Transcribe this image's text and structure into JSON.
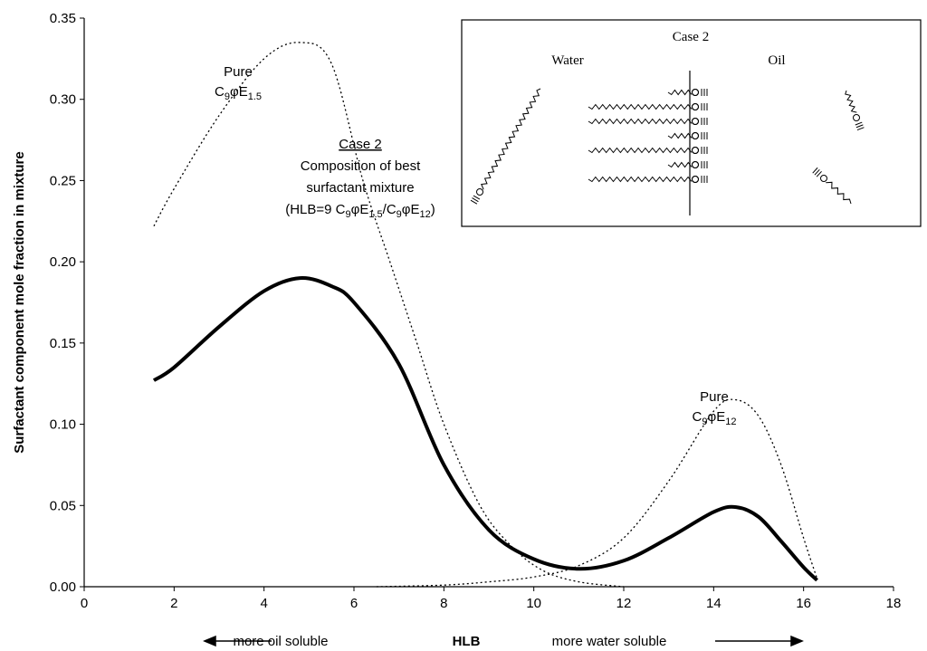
{
  "chart_data": {
    "type": "line",
    "xlabel": "HLB",
    "ylabel": "Surfactant component mole fraction in mixture",
    "xlim": [
      0,
      18
    ],
    "ylim": [
      0,
      0.35
    ],
    "xticks": [
      0,
      2,
      4,
      6,
      8,
      10,
      12,
      14,
      16,
      18
    ],
    "yticks": [
      {
        "value": 0,
        "label": "0.00"
      },
      0.05,
      {
        "value": 0.1,
        "label": "0.10"
      },
      0.15,
      {
        "value": 0.2,
        "label": "0.20"
      },
      0.25,
      {
        "value": 0.3,
        "label": "0.30"
      },
      0.35
    ],
    "series": [
      {
        "color": "#000000",
        "dash": "dotted",
        "width": 1.3,
        "x": [
          1.55,
          2,
          3,
          4,
          4.8,
          5.5,
          6.2,
          6.8,
          7.4,
          8,
          8.8,
          9.5,
          10.2,
          11,
          12
        ],
        "values": [
          0.222,
          0.245,
          0.29,
          0.325,
          0.335,
          0.322,
          0.25,
          0.2,
          0.15,
          0.1,
          0.05,
          0.025,
          0.01,
          0.003,
          0
        ]
      },
      {
        "color": "#000000",
        "dash": "solid",
        "width": 4,
        "x": [
          1.55,
          2,
          3,
          4,
          4.8,
          5.5,
          6,
          7,
          8,
          9,
          10,
          11,
          12,
          13,
          14,
          14.5,
          15,
          15.5,
          16,
          16.3
        ],
        "values": [
          0.127,
          0.135,
          0.16,
          0.182,
          0.19,
          0.185,
          0.175,
          0.137,
          0.075,
          0.035,
          0.017,
          0.011,
          0.016,
          0.03,
          0.046,
          0.049,
          0.043,
          0.028,
          0.012,
          0.004
        ]
      },
      {
        "color": "#000000",
        "dash": "dotted",
        "width": 1.3,
        "x": [
          6.5,
          8,
          9,
          10,
          11,
          12,
          13,
          14,
          14.5,
          15,
          15.5,
          16,
          16.3
        ],
        "values": [
          0,
          0.001,
          0.003,
          0.006,
          0.013,
          0.03,
          0.065,
          0.108,
          0.115,
          0.105,
          0.075,
          0.03,
          0.005
        ]
      }
    ],
    "annotations": [
      {
        "lines": [
          [
            "Pure"
          ],
          [
            "C",
            "9",
            "φE",
            "1.5"
          ]
        ]
      },
      {
        "lines": [
          [
            "Case 2"
          ],
          [
            "Composition of best"
          ],
          [
            "surfactant mixture"
          ],
          [
            "(HLB=9 C",
            "9",
            "φE",
            "1.5",
            "/C",
            "9",
            "φE",
            "12",
            ")"
          ]
        ]
      },
      {
        "lines": [
          [
            "Pure"
          ],
          [
            "C",
            "9",
            "φE",
            "12"
          ]
        ]
      }
    ],
    "direction_notes": [
      "more oil soluble",
      "more water soluble"
    ],
    "inset": {
      "title": "Case 2",
      "labels": [
        "Water",
        "Oil"
      ]
    }
  }
}
